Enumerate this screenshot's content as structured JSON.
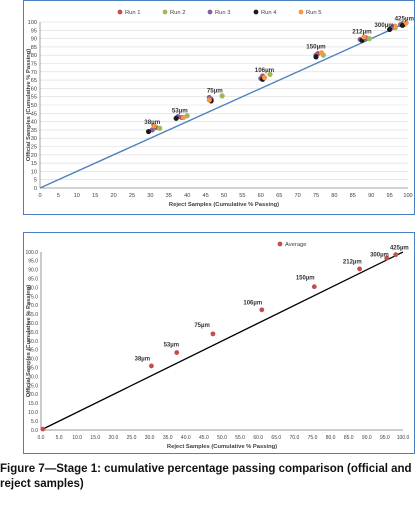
{
  "chart_data": [
    {
      "type": "scatter",
      "title": "",
      "xlabel": "Reject Samples (Cumulative % Passing)",
      "ylabel": "Official Samples (Cumulative % Passing)",
      "xlim": [
        0,
        100
      ],
      "ylim": [
        0,
        100
      ],
      "x_ticks": [
        "0",
        "5",
        "10",
        "15",
        "20",
        "25",
        "30",
        "35",
        "40",
        "45",
        "50",
        "55",
        "60",
        "65",
        "70",
        "75",
        "80",
        "85",
        "90",
        "95",
        "100"
      ],
      "y_ticks": [
        "0",
        "5",
        "10",
        "15",
        "20",
        "25",
        "30",
        "35",
        "40",
        "45",
        "50",
        "55",
        "60",
        "65",
        "70",
        "75",
        "80",
        "85",
        "90",
        "95",
        "100"
      ],
      "grid": "horizontal",
      "legend_position": "top",
      "reference_line": {
        "x": [
          0,
          100
        ],
        "y": [
          0,
          100
        ],
        "color": "#4f81bd"
      },
      "series": [
        {
          "name": "Run 1",
          "color": "#c0504d",
          "points": [
            [
              31.5,
              36.5
            ],
            [
              38.5,
              42.5
            ],
            [
              46.5,
              53.5
            ],
            [
              60.5,
              67.5
            ],
            [
              75.5,
              81.0
            ],
            [
              88.5,
              90.5
            ],
            [
              96.0,
              97.0
            ],
            [
              98.5,
              99.0
            ]
          ]
        },
        {
          "name": "Run 2",
          "color": "#9bbb59",
          "points": [
            [
              32.5,
              36.0
            ],
            [
              40.0,
              43.5
            ],
            [
              49.5,
              55.5
            ],
            [
              62.5,
              68.5
            ],
            [
              77.0,
              80.0
            ],
            [
              89.5,
              90.0
            ],
            [
              96.5,
              96.5
            ],
            [
              99.0,
              98.5
            ]
          ]
        },
        {
          "name": "Run 3",
          "color": "#8064a2",
          "points": [
            [
              30.5,
              35.0
            ],
            [
              37.5,
              43.0
            ],
            [
              46.0,
              54.5
            ],
            [
              60.0,
              66.0
            ],
            [
              75.0,
              80.0
            ],
            [
              87.0,
              89.5
            ],
            [
              95.5,
              96.5
            ],
            [
              98.0,
              98.5
            ]
          ]
        },
        {
          "name": "Run 4",
          "color": "#1a1a1a",
          "points": [
            [
              29.5,
              34.0
            ],
            [
              37.0,
              42.0
            ],
            [
              46.5,
              52.5
            ],
            [
              60.5,
              65.5
            ],
            [
              75.0,
              79.0
            ],
            [
              87.5,
              89.0
            ],
            [
              95.0,
              95.5
            ],
            [
              98.5,
              98.0
            ]
          ]
        },
        {
          "name": "Run 5",
          "color": "#f79646",
          "points": [
            [
              31.0,
              37.5
            ],
            [
              39.0,
              42.5
            ],
            [
              46.0,
              53.0
            ],
            [
              61.0,
              66.5
            ],
            [
              76.5,
              81.5
            ],
            [
              88.0,
              91.0
            ],
            [
              96.5,
              97.5
            ],
            [
              99.5,
              99.5
            ]
          ]
        }
      ],
      "annotations": [
        {
          "text": "38µm",
          "x": 30.5,
          "y": 38.5
        },
        {
          "text": "53µm",
          "x": 38.0,
          "y": 45.5
        },
        {
          "text": "75µm",
          "x": 47.5,
          "y": 57.5
        },
        {
          "text": "106µm",
          "x": 61.0,
          "y": 70.0
        },
        {
          "text": "150µm",
          "x": 75.0,
          "y": 84.0
        },
        {
          "text": "212µm",
          "x": 87.5,
          "y": 93.0
        },
        {
          "text": "300µm",
          "x": 93.5,
          "y": 97.0
        },
        {
          "text": "425µm",
          "x": 99.0,
          "y": 101.0
        }
      ]
    },
    {
      "type": "scatter",
      "title": "",
      "xlabel": "Reject Samples (Cumulative % Passing)",
      "ylabel": "Official Samples (Cumulative % Passing)",
      "xlim": [
        0,
        100
      ],
      "ylim": [
        0,
        100
      ],
      "x_ticks": [
        "0.0",
        "5.0",
        "10.0",
        "15.0",
        "20.0",
        "25.0",
        "30.0",
        "35.0",
        "40.0",
        "45.0",
        "50.0",
        "55.0",
        "60.0",
        "65.0",
        "70.0",
        "75.0",
        "80.0",
        "85.0",
        "90.0",
        "95.0",
        "100.0"
      ],
      "y_ticks": [
        "0.0",
        "5.0",
        "10.0",
        "15.0",
        "20.0",
        "25.0",
        "30.0",
        "35.0",
        "40.0",
        "45.0",
        "50.0",
        "55.0",
        "60.0",
        "65.0",
        "70.0",
        "75.0",
        "80.0",
        "85.0",
        "90.0",
        "95.0",
        "100.0"
      ],
      "grid": "none",
      "legend_position": "top-right",
      "reference_line": {
        "x": [
          0,
          100
        ],
        "y": [
          0,
          100
        ],
        "color": "#000000"
      },
      "series": [
        {
          "name": "Average",
          "color": "#c0504d",
          "points": [
            [
              0.5,
              0.5
            ],
            [
              30.5,
              36.0
            ],
            [
              37.5,
              43.5
            ],
            [
              47.5,
              54.0
            ],
            [
              61.0,
              67.5
            ],
            [
              75.5,
              80.5
            ],
            [
              88.0,
              90.5
            ],
            [
              95.5,
              96.5
            ],
            [
              98.0,
              98.5
            ]
          ]
        }
      ],
      "annotations": [
        {
          "text": "38µm",
          "x": 28.0,
          "y": 39.0
        },
        {
          "text": "53µm",
          "x": 36.0,
          "y": 47.0
        },
        {
          "text": "75µm",
          "x": 44.5,
          "y": 58.0
        },
        {
          "text": "106µm",
          "x": 58.5,
          "y": 70.5
        },
        {
          "text": "150µm",
          "x": 73.0,
          "y": 84.5
        },
        {
          "text": "212µm",
          "x": 86.0,
          "y": 93.5
        },
        {
          "text": "300µm",
          "x": 93.5,
          "y": 97.5
        },
        {
          "text": "425µm",
          "x": 99.0,
          "y": 101.5
        }
      ]
    }
  ],
  "caption": "Figure 7—Stage 1: cumulative percentage passing comparison (official and reject samples)"
}
